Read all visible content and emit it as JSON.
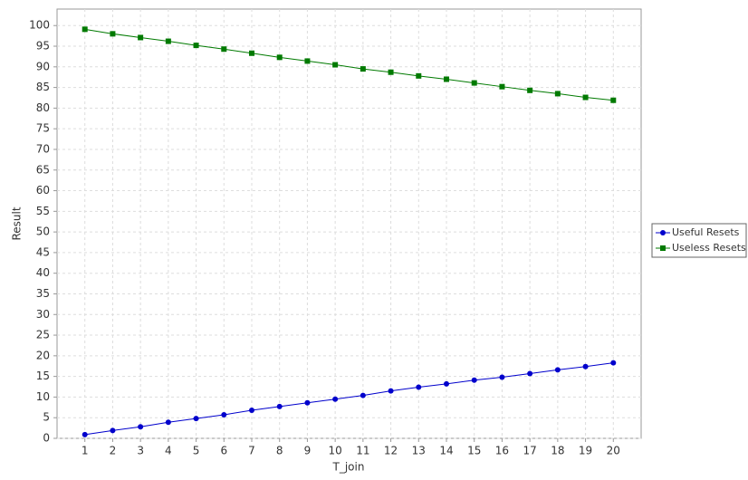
{
  "chart_data": {
    "type": "line",
    "x_label": "T_join",
    "y_label": "Result",
    "x": [
      1,
      2,
      3,
      4,
      5,
      6,
      7,
      8,
      9,
      10,
      11,
      12,
      13,
      14,
      15,
      16,
      17,
      18,
      19,
      20
    ],
    "xlim": [
      0,
      21
    ],
    "xticks": [
      1,
      2,
      3,
      4,
      5,
      6,
      7,
      8,
      9,
      10,
      11,
      12,
      13,
      14,
      15,
      16,
      17,
      18,
      19,
      20
    ],
    "ylim": [
      0,
      104
    ],
    "yticks": [
      0,
      5,
      10,
      15,
      20,
      25,
      30,
      35,
      40,
      45,
      50,
      55,
      60,
      65,
      70,
      75,
      80,
      85,
      90,
      95,
      100
    ],
    "grid": true,
    "legend": "right",
    "series": [
      {
        "name": "Useful Resets",
        "color": "#0000cc",
        "marker": "circle",
        "values": [
          0.9,
          1.9,
          2.8,
          3.9,
          4.8,
          5.7,
          6.8,
          7.7,
          8.6,
          9.5,
          10.4,
          11.5,
          12.4,
          13.2,
          14.1,
          14.8,
          15.7,
          16.6,
          17.4,
          18.3
        ]
      },
      {
        "name": "Useless Resets",
        "color": "#007a00",
        "marker": "square",
        "values": [
          99.1,
          98.0,
          97.1,
          96.2,
          95.2,
          94.3,
          93.3,
          92.3,
          91.4,
          90.5,
          89.5,
          88.7,
          87.8,
          87.0,
          86.1,
          85.2,
          84.3,
          83.5,
          82.6,
          81.9
        ]
      }
    ]
  }
}
